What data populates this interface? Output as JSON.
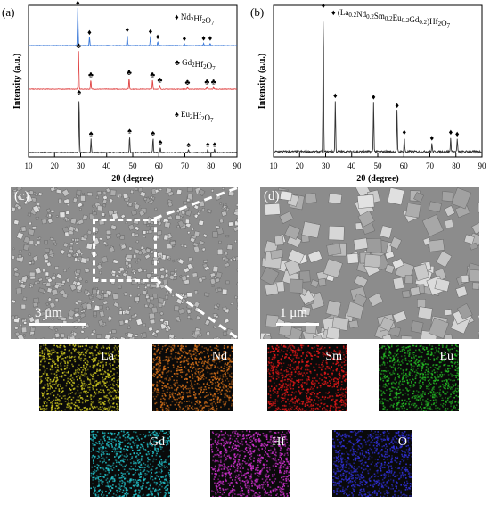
{
  "panels": {
    "a": {
      "label": "(a)"
    },
    "b": {
      "label": "(b)"
    },
    "c": {
      "label": "(c)",
      "scale_bar": "3 μm"
    },
    "d": {
      "label": "(d)",
      "scale_bar": "1 μm"
    }
  },
  "chart_data": [
    {
      "type": "line",
      "panel": "a",
      "xlabel": "2θ (degree)",
      "ylabel": "Intensity (a.u.)",
      "xlim": [
        10,
        90
      ],
      "xticks": [
        10,
        20,
        30,
        40,
        50,
        60,
        70,
        80,
        90
      ],
      "grid": false,
      "series": [
        {
          "name": "Nd2Hf2O7",
          "color": "#3a78d8",
          "marker": "♦",
          "peaks": [
            [
              28.9,
              1.0
            ],
            [
              33.4,
              0.22
            ],
            [
              47.9,
              0.28
            ],
            [
              56.8,
              0.24
            ],
            [
              59.6,
              0.1
            ],
            [
              69.8,
              0.05
            ],
            [
              77.2,
              0.06
            ],
            [
              79.7,
              0.06
            ]
          ]
        },
        {
          "name": "Gd2Hf2O7",
          "color": "#e04545",
          "marker": "♣",
          "peaks": [
            [
              29.2,
              1.0
            ],
            [
              33.9,
              0.25
            ],
            [
              48.6,
              0.3
            ],
            [
              57.6,
              0.25
            ],
            [
              60.4,
              0.1
            ],
            [
              71.0,
              0.05
            ],
            [
              78.5,
              0.06
            ],
            [
              81.0,
              0.06
            ]
          ]
        },
        {
          "name": "Eu2Hf2O7",
          "color": "#333333",
          "marker": "♠",
          "peaks": [
            [
              29.4,
              1.0
            ],
            [
              34.0,
              0.25
            ],
            [
              48.8,
              0.3
            ],
            [
              57.8,
              0.26
            ],
            [
              60.6,
              0.1
            ],
            [
              71.4,
              0.05
            ],
            [
              78.8,
              0.06
            ],
            [
              81.4,
              0.06
            ]
          ]
        }
      ]
    },
    {
      "type": "line",
      "panel": "b",
      "xlabel": "2θ (degree)",
      "ylabel": "Intensity (a.u.)",
      "xlim": [
        10,
        90
      ],
      "xticks": [
        10,
        20,
        30,
        40,
        50,
        60,
        70,
        80,
        90
      ],
      "grid": false,
      "series": [
        {
          "name": "(La0.2Nd0.2Sm0.2Eu0.2Gd0.2)Hf2O7",
          "color": "#333333",
          "marker": "♦",
          "peaks": [
            [
              29.1,
              1.0
            ],
            [
              33.7,
              0.36
            ],
            [
              48.4,
              0.35
            ],
            [
              57.4,
              0.29
            ],
            [
              60.2,
              0.1
            ],
            [
              70.8,
              0.06
            ],
            [
              78.0,
              0.1
            ],
            [
              80.5,
              0.09
            ]
          ]
        }
      ]
    }
  ],
  "legend_a": [
    {
      "marker": "♦",
      "base": "Nd",
      "sub1": "2",
      "mid": "Hf",
      "sub2": "2",
      "end": "O",
      "sub3": "7"
    },
    {
      "marker": "♣",
      "base": "Gd",
      "sub1": "2",
      "mid": "Hf",
      "sub2": "2",
      "end": "O",
      "sub3": "7"
    },
    {
      "marker": "♠",
      "base": "Eu",
      "sub1": "2",
      "mid": "Hf",
      "sub2": "2",
      "end": "O",
      "sub3": "7"
    }
  ],
  "legend_b": {
    "marker": "♦"
  },
  "eds_maps": [
    {
      "element": "La",
      "color": "#c8c21f"
    },
    {
      "element": "Nd",
      "color": "#d4701a"
    },
    {
      "element": "Sm",
      "color": "#e01818"
    },
    {
      "element": "Eu",
      "color": "#24b824"
    },
    {
      "element": "Gd",
      "color": "#22c0c8"
    },
    {
      "element": "Hf",
      "color": "#d030d0"
    },
    {
      "element": "O",
      "color": "#3030d8"
    }
  ]
}
